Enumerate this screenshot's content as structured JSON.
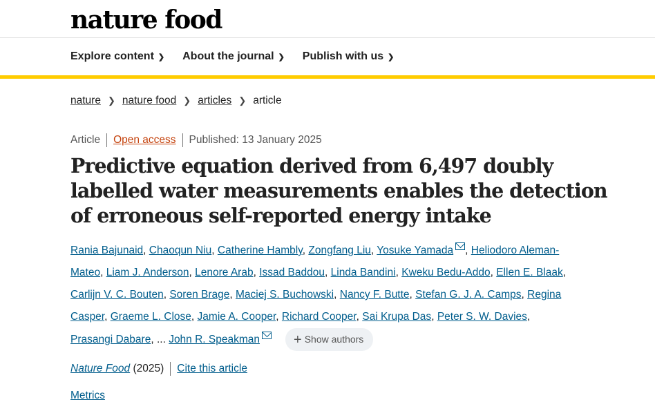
{
  "header": {
    "logo": "nature food",
    "nav": [
      "Explore content",
      "About the journal",
      "Publish with us"
    ]
  },
  "breadcrumb": [
    "nature",
    "nature food",
    "articles",
    "article"
  ],
  "meta": {
    "type": "Article",
    "access": "Open access",
    "published": "Published: 13 January 2025"
  },
  "title": "Predictive equation derived from 6,497 doubly labelled water measurements enables the detection of erroneous self-reported energy intake",
  "authors": [
    "Rania Bajunaid",
    "Chaoqun Niu",
    "Catherine Hambly",
    "Zongfang Liu",
    "Yosuke Yamada",
    "Heliodoro Aleman-Mateo",
    "Liam J. Anderson",
    "Lenore Arab",
    "Issad Baddou",
    "Linda Bandini",
    "Kweku Bedu-Addo",
    "Ellen E. Blaak",
    "Carlijn V. C. Bouten",
    "Soren Brage",
    "Maciej S. Buchowski",
    "Nancy F. Butte",
    "Stefan G. J. A. Camps",
    "Regina Casper",
    "Graeme L. Close",
    "Jamie A. Cooper",
    "Richard Cooper",
    "Sai Krupa Das",
    "Peter S. W. Davies",
    "Prasangi Dabare"
  ],
  "last_author": "John R. Speakman",
  "ellipsis": "...",
  "show_authors": "Show authors",
  "citation": {
    "journal": "Nature Food",
    "year": "(2025)",
    "cite": "Cite this article"
  },
  "metrics": "Metrics"
}
